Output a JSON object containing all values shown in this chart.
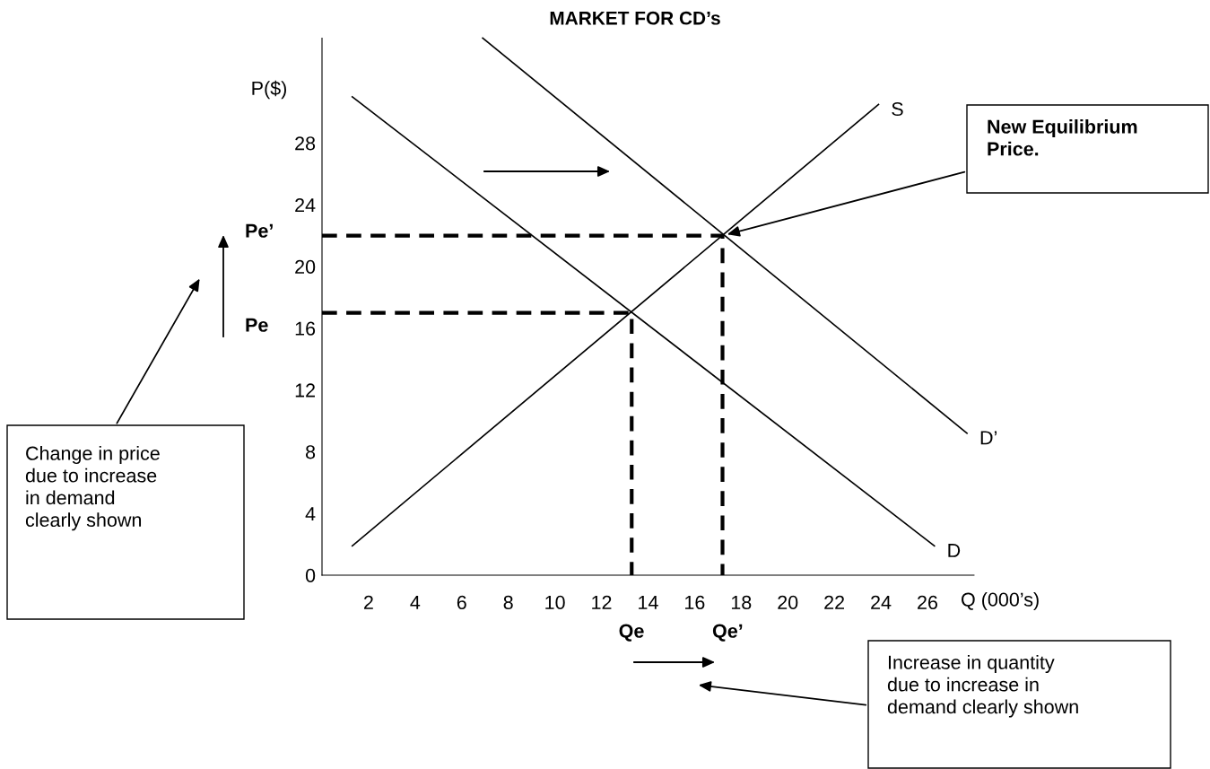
{
  "chart_data": {
    "type": "line",
    "title": "MARKET FOR CD’s",
    "xlabel": "Q (000’s)",
    "ylabel": "P($)",
    "xlim": [
      0,
      28
    ],
    "ylim": [
      0,
      34.8
    ],
    "xticks": [
      2,
      4,
      6,
      8,
      10,
      12,
      14,
      16,
      18,
      20,
      22,
      24,
      26
    ],
    "yticks": [
      0,
      4,
      8,
      12,
      16,
      20,
      24,
      28
    ],
    "grid": false,
    "legend": false,
    "marker": "none",
    "series": [
      {
        "name": "S",
        "color": "#000000",
        "x": [
          1.3,
          23.9
        ],
        "values": [
          1.9,
          30.5
        ]
      },
      {
        "name": "D",
        "color": "#000000",
        "x": [
          1.3,
          26.3
        ],
        "values": [
          31.0,
          1.9
        ]
      },
      {
        "name": "D’",
        "color": "#000000",
        "x": [
          6.9,
          27.7
        ],
        "values": [
          34.8,
          9.2
        ]
      },
      {
        "color": "#000000",
        "line_style": "dashed",
        "x": [
          0,
          13.3,
          13.3
        ],
        "values": [
          17,
          17,
          0
        ]
      },
      {
        "color": "#000000",
        "line_style": "dashed",
        "x": [
          0,
          17.2,
          17.2
        ],
        "values": [
          22,
          22,
          0
        ]
      }
    ],
    "annotations": [
      "Pe’",
      "Pe",
      "Qe",
      "Qe’",
      "New Equilibrium Price.",
      "Change in price due to increase in demand clearly shown",
      "Increase in quantity due to increase in demand clearly shown"
    ]
  }
}
